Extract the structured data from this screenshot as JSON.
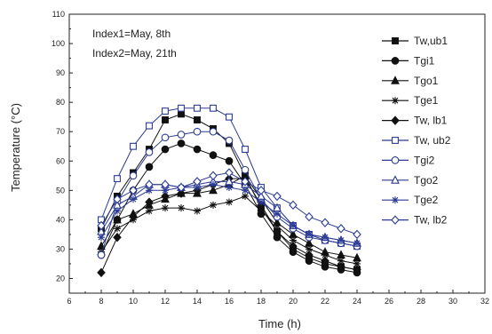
{
  "chart_data": {
    "type": "line",
    "title": "",
    "xlabel": "Time (h)",
    "ylabel": "Temperature (°C)",
    "xlim": [
      6,
      32
    ],
    "ylim": [
      15,
      110
    ],
    "x_ticks": [
      6,
      8,
      10,
      12,
      14,
      16,
      18,
      20,
      22,
      24,
      26,
      28,
      30,
      32
    ],
    "y_ticks": [
      20,
      30,
      40,
      50,
      60,
      70,
      80,
      90,
      100,
      110
    ],
    "grid": false,
    "legend_position": "top-right",
    "annotations": [
      "Index1=May, 8th",
      "Index2=May, 21th"
    ],
    "x": [
      8,
      9,
      10,
      11,
      12,
      13,
      14,
      15,
      16,
      17,
      18,
      19,
      20,
      21,
      22,
      23,
      24
    ],
    "series": [
      {
        "name": "Tw,ub1",
        "marker": "square-filled",
        "color": "#111111",
        "values": [
          37,
          48,
          56,
          64,
          74,
          76,
          74,
          71,
          66,
          55,
          44,
          36,
          30,
          27,
          25,
          24,
          23
        ]
      },
      {
        "name": "Tgi1",
        "marker": "circle-filled",
        "color": "#111111",
        "values": [
          28,
          40,
          50,
          58,
          64,
          66,
          64,
          62,
          60,
          52,
          42,
          34,
          29,
          26,
          24,
          23,
          22
        ]
      },
      {
        "name": "Tgo1",
        "marker": "triangle-filled",
        "color": "#111111",
        "values": [
          31,
          40,
          42,
          45,
          47,
          49,
          49,
          50,
          52,
          55,
          47,
          39,
          35,
          32,
          29,
          28,
          27
        ]
      },
      {
        "name": "Tge1",
        "marker": "star",
        "color": "#111111",
        "values": [
          29,
          37,
          40,
          43,
          44,
          44,
          43,
          45,
          46,
          48,
          43,
          38,
          33,
          30,
          28,
          26,
          25
        ]
      },
      {
        "name": "Tw, lb1",
        "marker": "diamond-filled",
        "color": "#111111",
        "values": [
          22,
          34,
          41,
          46,
          48,
          49,
          50,
          52,
          54,
          54,
          45,
          36,
          31,
          28,
          26,
          24,
          23
        ]
      },
      {
        "name": "Tw, ub2",
        "marker": "square-open",
        "color": "#2b3b94",
        "values": [
          40,
          54,
          65,
          72,
          77,
          78,
          78,
          78,
          75,
          64,
          51,
          44,
          38,
          35,
          33,
          32,
          31
        ]
      },
      {
        "name": "Tgi2",
        "marker": "circle-open",
        "color": "#2b3b94",
        "values": [
          28,
          46,
          55,
          63,
          68,
          69,
          70,
          70,
          67,
          57,
          47,
          41,
          37,
          34,
          33,
          32,
          31
        ]
      },
      {
        "name": "Tgo2",
        "marker": "triangle-open",
        "color": "#2b3b94",
        "values": [
          36,
          45,
          48,
          52,
          52,
          51,
          52,
          53,
          53,
          52,
          48,
          44,
          38,
          35,
          34,
          33,
          32
        ]
      },
      {
        "name": "Tge2",
        "marker": "star",
        "color": "#2b3b94",
        "values": [
          34,
          43,
          47,
          50,
          50,
          51,
          51,
          52,
          51,
          50,
          46,
          42,
          38,
          35,
          34,
          33,
          32
        ]
      },
      {
        "name": "Tw, lb2",
        "marker": "diamond-open",
        "color": "#2b3b94",
        "values": [
          38,
          47,
          50,
          52,
          52,
          51,
          53,
          55,
          56,
          53,
          50,
          48,
          45,
          41,
          39,
          37,
          35
        ]
      }
    ]
  }
}
